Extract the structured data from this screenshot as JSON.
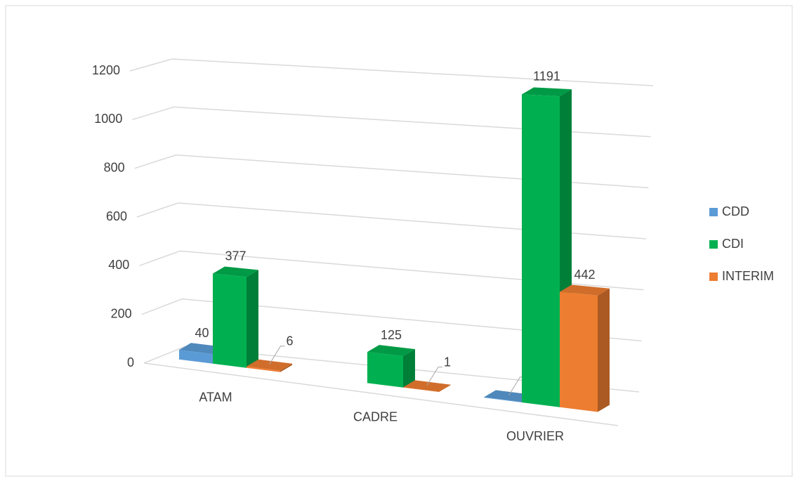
{
  "chart_data": {
    "type": "bar3d",
    "categories": [
      "ATAM",
      "CADRE",
      "OUVRIER"
    ],
    "series": [
      {
        "name": "CDD",
        "color": "#5b9bd5",
        "values": [
          40,
          null,
          2
        ]
      },
      {
        "name": "CDI",
        "color": "#00b050",
        "values": [
          377,
          125,
          1191
        ]
      },
      {
        "name": "INTERIM",
        "color": "#ed7d31",
        "values": [
          6,
          1,
          442
        ]
      }
    ],
    "ylim": [
      0,
      1200
    ],
    "yticks": [
      0,
      200,
      400,
      600,
      800,
      1000,
      1200
    ],
    "grid": true,
    "legend": "right"
  }
}
